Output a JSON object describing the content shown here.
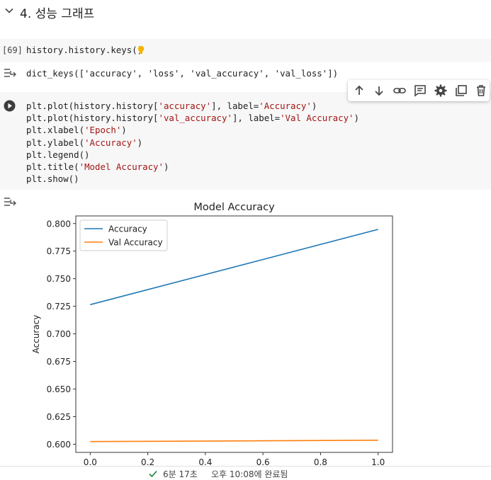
{
  "section": {
    "title": "4. 성능 그래프"
  },
  "cells": {
    "cell1": {
      "exec_count": "[69]",
      "code": "history.history.keys()",
      "output": "dict_keys(['accuracy', 'loss', 'val_accuracy', 'val_loss'])"
    },
    "cell2": {
      "lines": [
        [
          "plt.plot(history.history[",
          "'accuracy'",
          "], label=",
          "'Accuracy'",
          ")"
        ],
        [
          "plt.plot(history.history[",
          "'val_accuracy'",
          "], label=",
          "'Val Accuracy'",
          ")"
        ],
        [
          "plt.xlabel(",
          "'Epoch'",
          ")",
          "",
          ""
        ],
        [
          "plt.ylabel(",
          "'Accuracy'",
          ")",
          "",
          ""
        ],
        [
          "plt.legend()",
          "",
          "",
          "",
          ""
        ],
        [
          "plt.title(",
          "'Model Accuracy'",
          ")",
          "",
          ""
        ],
        [
          "plt.show()",
          "",
          "",
          "",
          ""
        ]
      ]
    }
  },
  "toolbar": {
    "icons": [
      "arrow-up-icon",
      "arrow-down-icon",
      "link-icon",
      "comment-icon",
      "gear-icon",
      "mirror-cell-icon",
      "trash-icon"
    ]
  },
  "chart_data": {
    "type": "line",
    "title": "Model Accuracy",
    "xlabel": "",
    "ylabel": "Accuracy",
    "x": [
      0.0,
      1.0
    ],
    "xlim": [
      -0.05,
      1.05
    ],
    "ylim": [
      0.5926,
      0.8069
    ],
    "xticks": [
      "0.0",
      "0.2",
      "0.4",
      "0.6",
      "0.8",
      "1.0"
    ],
    "yticks": [
      "0.600",
      "0.625",
      "0.650",
      "0.675",
      "0.700",
      "0.725",
      "0.750",
      "0.775",
      "0.800"
    ],
    "legend": "top-left",
    "series": [
      {
        "name": "Accuracy",
        "values": [
          0.7265,
          0.7947
        ],
        "color": "#1f77b4"
      },
      {
        "name": "Val Accuracy",
        "values": [
          0.6024,
          0.6036
        ],
        "color": "#ff7f0e"
      }
    ]
  },
  "status": {
    "check_color": "#188038",
    "duration": "6분 17초",
    "completed": "오후 10:08에 완료됨"
  }
}
